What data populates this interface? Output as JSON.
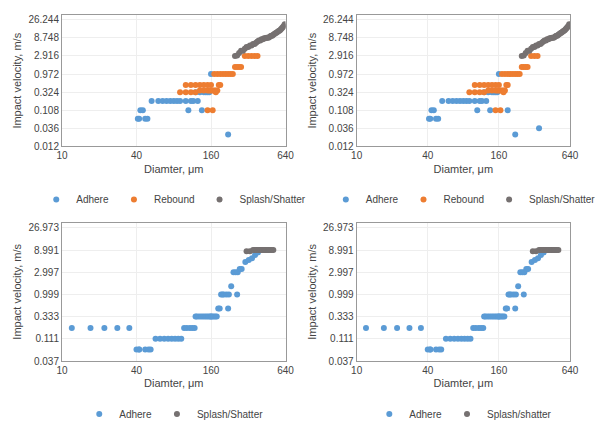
{
  "chart_data": [
    {
      "type": "scatter",
      "xlabel": "Diamter, μm",
      "ylabel": "Impact velocity, m/s",
      "log": true,
      "grid": true,
      "legend": "bottom",
      "xlim": [
        10,
        640
      ],
      "ylim": [
        0.012,
        35
      ],
      "xticks": [
        10,
        40,
        160,
        640
      ],
      "yticks": [
        0.012,
        0.036,
        0.108,
        0.324,
        0.972,
        2.916,
        8.748,
        26.244
      ],
      "series": [
        {
          "name": "Adhere",
          "color": "#5B9BD5",
          "marker": "circle",
          "x": [
            42,
            43,
            45,
            41,
            47,
            49,
            53,
            60,
            65,
            70,
            75,
            80,
            85,
            90,
            100,
            110,
            120,
            130,
            140,
            150,
            160,
            220,
            105,
            115,
            125,
            135,
            145,
            155
          ],
          "values": [
            0.065,
            0.108,
            0.108,
            0.065,
            0.065,
            0.065,
            0.19,
            0.19,
            0.19,
            0.19,
            0.19,
            0.19,
            0.19,
            0.19,
            0.19,
            0.19,
            0.324,
            0.324,
            0.324,
            0.324,
            0.972,
            0.025,
            0.108,
            0.19,
            0.19,
            0.108,
            0.324,
            0.324
          ]
        },
        {
          "name": "Rebound",
          "color": "#ED7D31",
          "marker": "circle",
          "x": [
            90,
            100,
            110,
            120,
            130,
            140,
            150,
            155,
            160,
            165,
            170,
            175,
            180,
            185,
            190,
            100,
            110,
            120,
            130,
            140,
            150,
            160,
            170,
            180,
            190,
            200,
            210,
            220,
            230,
            240,
            250,
            260,
            270,
            280,
            300,
            320,
            340,
            360,
            380,
            150,
            165,
            175
          ],
          "values": [
            0.324,
            0.324,
            0.324,
            0.324,
            0.36,
            0.36,
            0.36,
            0.36,
            0.36,
            0.36,
            0.36,
            0.36,
            0.36,
            0.5,
            0.5,
            0.5,
            0.5,
            0.5,
            0.5,
            0.5,
            0.5,
            0.5,
            0.972,
            0.972,
            0.972,
            0.972,
            0.972,
            0.972,
            0.972,
            0.972,
            1.5,
            1.5,
            1.5,
            1.5,
            2.916,
            2.916,
            2.916,
            2.916,
            2.916,
            0.108,
            0.108,
            0.324
          ]
        },
        {
          "name": "Splash/Shatter",
          "color": "#767171",
          "marker": "circle",
          "x": [
            250,
            260,
            270,
            280,
            290,
            300,
            310,
            320,
            330,
            340,
            350,
            360,
            370,
            380,
            390,
            400,
            410,
            420,
            430,
            440,
            450,
            460,
            470,
            480,
            490,
            500,
            510,
            520,
            530,
            540,
            550,
            560,
            570,
            580,
            590,
            600,
            610,
            620,
            630
          ],
          "values": [
            2.916,
            3.0,
            3.5,
            4.0,
            4.0,
            4.5,
            5.0,
            5.0,
            5.5,
            5.5,
            6.0,
            6.0,
            6.5,
            7.0,
            7.5,
            7.5,
            8.0,
            8.0,
            8.5,
            8.5,
            8.748,
            8.748,
            9.0,
            9.5,
            10.0,
            10.0,
            10.5,
            11.0,
            11.5,
            12.0,
            12.5,
            13.0,
            13.5,
            14.0,
            15.0,
            16.0,
            17.0,
            18.0,
            20.0
          ]
        }
      ]
    },
    {
      "type": "scatter",
      "xlabel": "Diamter, μm",
      "ylabel": "Impact velocity, m/s",
      "log": true,
      "grid": true,
      "legend": "bottom",
      "xlim": [
        10,
        640
      ],
      "ylim": [
        0.012,
        35
      ],
      "xticks": [
        10,
        40,
        160,
        640
      ],
      "yticks": [
        0.012,
        0.036,
        0.108,
        0.324,
        0.972,
        2.916,
        8.748,
        26.244
      ],
      "series": [
        {
          "name": "Adhere",
          "color": "#5B9BD5",
          "marker": "circle",
          "x": [
            42,
            43,
            45,
            41,
            47,
            49,
            53,
            60,
            65,
            70,
            75,
            80,
            85,
            90,
            100,
            110,
            120,
            130,
            140,
            150,
            160,
            220,
            105,
            115,
            125,
            135,
            145,
            155,
            190,
            350
          ],
          "values": [
            0.065,
            0.108,
            0.108,
            0.065,
            0.065,
            0.065,
            0.19,
            0.19,
            0.19,
            0.19,
            0.19,
            0.19,
            0.19,
            0.19,
            0.19,
            0.19,
            0.324,
            0.324,
            0.324,
            0.324,
            0.972,
            0.025,
            0.108,
            0.19,
            0.19,
            0.108,
            0.324,
            0.324,
            0.108,
            0.036
          ]
        },
        {
          "name": "Rebound",
          "color": "#ED7D31",
          "marker": "circle",
          "x": [
            90,
            100,
            110,
            120,
            130,
            140,
            150,
            155,
            160,
            165,
            170,
            175,
            180,
            185,
            190,
            100,
            110,
            120,
            130,
            140,
            150,
            160,
            170,
            180,
            190,
            200,
            210,
            220,
            230,
            240,
            250,
            260,
            270,
            280,
            300,
            320,
            340,
            150,
            165,
            175
          ],
          "values": [
            0.324,
            0.324,
            0.324,
            0.324,
            0.36,
            0.36,
            0.36,
            0.36,
            0.36,
            0.36,
            0.36,
            0.36,
            0.36,
            0.5,
            0.5,
            0.5,
            0.5,
            0.5,
            0.5,
            0.5,
            0.5,
            0.5,
            0.972,
            0.972,
            0.972,
            0.972,
            0.972,
            0.972,
            0.972,
            0.972,
            1.5,
            1.5,
            1.5,
            1.5,
            2.916,
            2.916,
            2.916,
            0.108,
            0.108,
            0.324
          ]
        },
        {
          "name": "Splash/Shatter",
          "color": "#767171",
          "marker": "circle",
          "x": [
            250,
            260,
            270,
            280,
            290,
            300,
            310,
            320,
            330,
            340,
            350,
            360,
            370,
            380,
            390,
            400,
            410,
            420,
            430,
            440,
            450,
            460,
            470,
            480,
            490,
            500,
            510,
            520,
            530,
            540,
            550,
            560,
            570,
            580,
            590,
            600,
            610,
            620,
            630
          ],
          "values": [
            2.916,
            3.0,
            3.5,
            4.0,
            4.0,
            4.5,
            5.0,
            5.0,
            5.5,
            5.5,
            6.0,
            6.0,
            6.5,
            7.0,
            7.5,
            7.5,
            8.0,
            8.0,
            8.5,
            8.5,
            8.748,
            8.748,
            9.0,
            9.5,
            10.0,
            10.0,
            10.5,
            11.0,
            11.5,
            12.0,
            12.5,
            13.0,
            13.5,
            14.0,
            15.0,
            16.0,
            17.0,
            18.0,
            20.0
          ]
        }
      ]
    },
    {
      "type": "scatter",
      "xlabel": "Diamter, μm",
      "ylabel": "Impact velocity, m/s",
      "log": true,
      "grid": true,
      "legend": "bottom",
      "xlim": [
        10,
        640
      ],
      "ylim": [
        0.037,
        35
      ],
      "xticks": [
        10,
        40,
        160,
        640
      ],
      "yticks": [
        0.037,
        0.111,
        0.333,
        0.999,
        2.997,
        8.991,
        26.973
      ],
      "series": [
        {
          "name": "Adhere",
          "color": "#5B9BD5",
          "marker": "circle",
          "x": [
            12,
            17,
            22,
            28,
            35,
            40,
            42,
            47,
            52,
            57,
            62,
            67,
            72,
            77,
            82,
            87,
            92,
            97,
            102,
            108,
            113,
            118,
            123,
            128,
            133,
            138,
            143,
            148,
            153,
            158,
            163,
            168,
            173,
            178,
            183,
            188,
            193,
            198,
            203,
            213,
            223,
            233,
            243,
            253,
            263,
            273,
            283,
            303,
            323,
            343,
            363,
            383,
            403,
            42,
            50,
            120,
            160,
            220,
            260
          ],
          "values": [
            0.19,
            0.19,
            0.19,
            0.19,
            0.19,
            0.065,
            0.065,
            0.065,
            0.065,
            0.111,
            0.111,
            0.111,
            0.111,
            0.111,
            0.111,
            0.111,
            0.111,
            0.19,
            0.19,
            0.19,
            0.19,
            0.19,
            0.333,
            0.333,
            0.333,
            0.333,
            0.333,
            0.333,
            0.333,
            0.333,
            0.333,
            0.333,
            0.333,
            0.333,
            0.5,
            0.5,
            0.999,
            0.999,
            0.999,
            0.999,
            0.999,
            1.5,
            2.997,
            2.997,
            2.997,
            3.5,
            3.5,
            5.0,
            5.5,
            6.0,
            7.0,
            8.0,
            8.991,
            0.065,
            0.065,
            0.333,
            0.333,
            0.5,
            0.999
          ]
        },
        {
          "name": "Splash/Shatter",
          "color": "#767171",
          "marker": "circle",
          "x": [
            310,
            330,
            350,
            360,
            370,
            380,
            390,
            400,
            410,
            420,
            430,
            440,
            450,
            460,
            470,
            480,
            495,
            510
          ],
          "values": [
            8.5,
            8.5,
            8.991,
            8.991,
            8.991,
            8.991,
            8.991,
            8.991,
            8.991,
            8.991,
            8.991,
            8.991,
            8.991,
            8.991,
            8.991,
            8.991,
            8.991,
            8.991
          ]
        }
      ]
    },
    {
      "type": "scatter",
      "xlabel": "Diamter, μm",
      "ylabel": "Impact velocity, m/s",
      "log": true,
      "grid": true,
      "legend": "bottom",
      "xlim": [
        10,
        640
      ],
      "ylim": [
        0.037,
        35
      ],
      "xticks": [
        10,
        40,
        160,
        640
      ],
      "yticks": [
        0.037,
        0.111,
        0.333,
        0.999,
        2.997,
        8.991,
        26.973
      ],
      "series": [
        {
          "name": "Adhere",
          "color": "#5B9BD5",
          "marker": "circle",
          "x": [
            12,
            17,
            22,
            28,
            35,
            40,
            42,
            47,
            52,
            57,
            62,
            67,
            72,
            77,
            82,
            87,
            92,
            97,
            102,
            108,
            113,
            118,
            123,
            128,
            133,
            138,
            143,
            148,
            153,
            158,
            163,
            168,
            173,
            178,
            183,
            188,
            193,
            198,
            203,
            213,
            223,
            233,
            243,
            253,
            263,
            273,
            283,
            303,
            323,
            343,
            363,
            383,
            403,
            42,
            50,
            120,
            160,
            220,
            260
          ],
          "values": [
            0.19,
            0.19,
            0.19,
            0.19,
            0.19,
            0.065,
            0.065,
            0.065,
            0.065,
            0.111,
            0.111,
            0.111,
            0.111,
            0.111,
            0.111,
            0.111,
            0.111,
            0.19,
            0.19,
            0.19,
            0.19,
            0.19,
            0.333,
            0.333,
            0.333,
            0.333,
            0.333,
            0.333,
            0.333,
            0.333,
            0.333,
            0.333,
            0.333,
            0.333,
            0.5,
            0.5,
            0.999,
            0.999,
            0.999,
            0.999,
            0.999,
            1.5,
            2.997,
            2.997,
            2.997,
            3.5,
            3.5,
            5.0,
            5.5,
            6.0,
            7.0,
            8.0,
            8.991,
            0.065,
            0.065,
            0.333,
            0.333,
            0.5,
            0.999
          ]
        },
        {
          "name": "Splash/shatter",
          "color": "#767171",
          "marker": "circle",
          "x": [
            310,
            330,
            350,
            360,
            370,
            380,
            390,
            400,
            410,
            420,
            430,
            440,
            450,
            460,
            470,
            480,
            495,
            510
          ],
          "values": [
            8.5,
            8.5,
            8.991,
            8.991,
            8.991,
            8.991,
            8.991,
            8.991,
            8.991,
            8.991,
            8.991,
            8.991,
            8.991,
            8.991,
            8.991,
            8.991,
            8.991,
            8.991
          ]
        }
      ]
    }
  ]
}
